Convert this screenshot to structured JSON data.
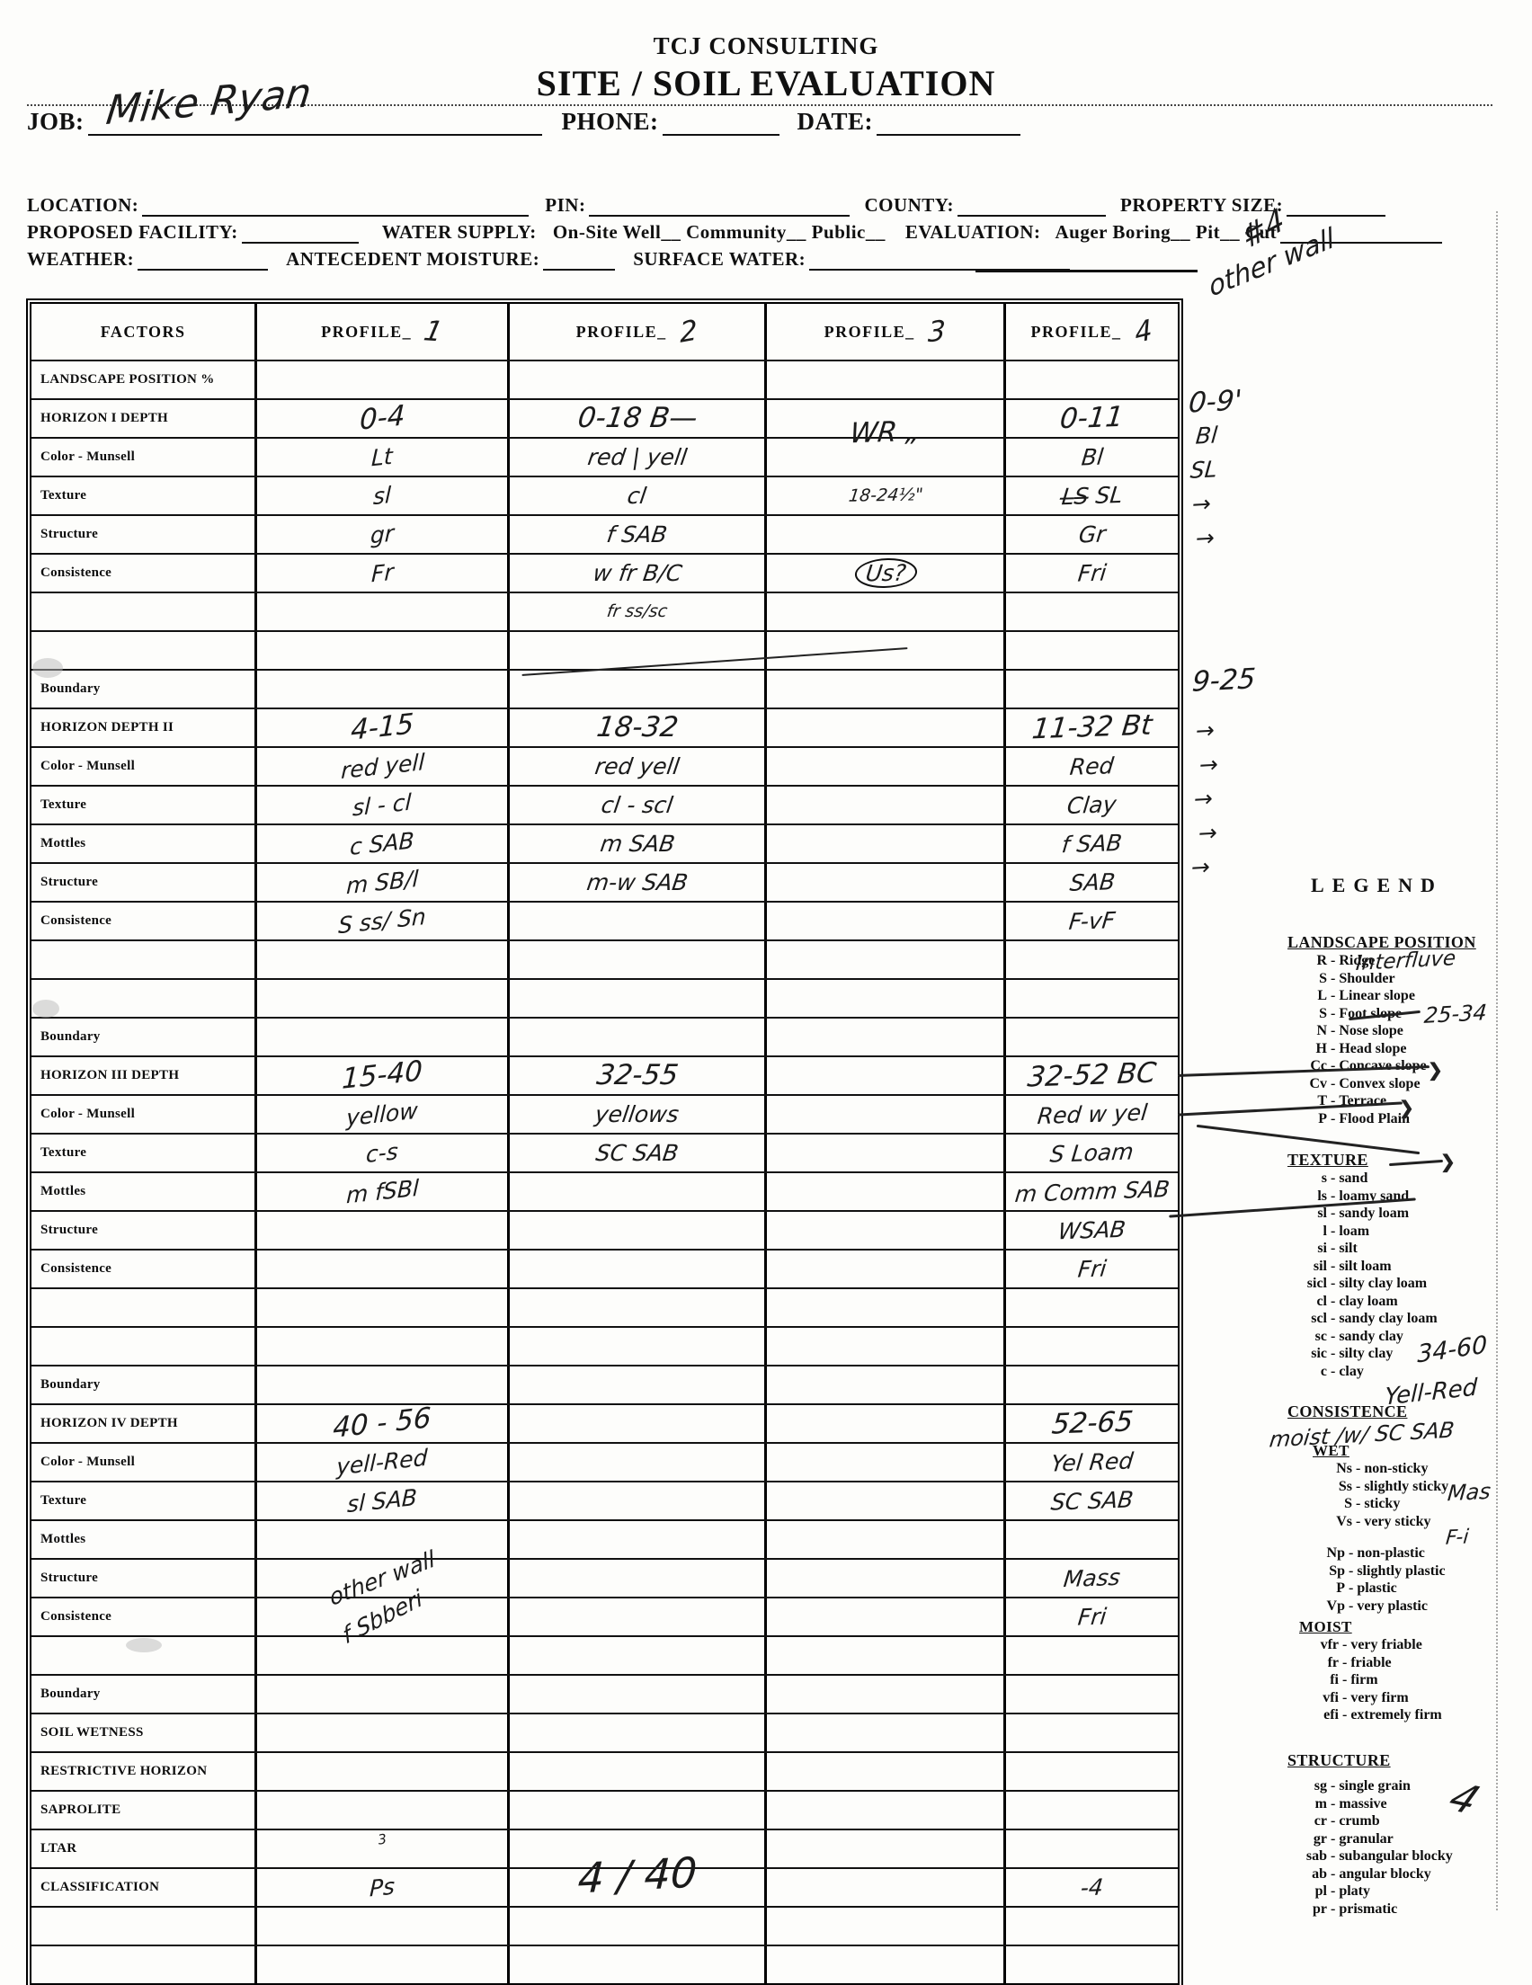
{
  "header": {
    "company": "TCJ CONSULTING",
    "title": "SITE / SOIL EVALUATION"
  },
  "fields": {
    "job_label": "JOB:",
    "job_value": "Mike Ryan",
    "phone_label": "PHONE:",
    "date_label": "DATE:",
    "location_label": "LOCATION:",
    "pin_label": "PIN:",
    "county_label": "COUNTY:",
    "property_size_label": "PROPERTY SIZE:",
    "proposed_facility_label": "PROPOSED FACILITY:",
    "water_supply_label": "WATER SUPPLY:",
    "water_supply_options": "On-Site Well__ Community__ Public__",
    "evaluation_label": "EVALUATION:",
    "evaluation_options": "Auger Boring__ Pit__ Cut",
    "weather_label": "WEATHER:",
    "antecedent_label": "ANTECEDENT MOISTURE:",
    "surface_water_label": "SURFACE WATER:"
  },
  "table": {
    "factors_heading": "FACTORS",
    "profile_heading": "PROFILE_",
    "profile_numbers": [
      "1",
      "2",
      "3",
      "4"
    ],
    "rows": [
      {
        "label": "LANDSCAPE POSITION %",
        "p1": "",
        "p2": "",
        "p3": "",
        "p4": ""
      },
      {
        "label": "HORIZON I DEPTH",
        "p1": "0-4",
        "p2": "0-18  B—",
        "p3": "WR „",
        "p4": "0-11"
      },
      {
        "label": "Color - Munsell",
        "p1": "Lt",
        "p2": "red | yell",
        "p3": "",
        "p4": "Bl"
      },
      {
        "label": "Texture",
        "p1": "sl",
        "p2": "cl",
        "p3": "18-24½\"",
        "p4": "L̶S̶ SL"
      },
      {
        "label": "Structure",
        "p1": "gr",
        "p2": "f SAB",
        "p3": "",
        "p4": "Gr"
      },
      {
        "label": "Consistence",
        "p1": "Fr",
        "p2": "w fr B/C",
        "p3": "Us?",
        "p4": "Fri"
      },
      {
        "label": "",
        "p1": "",
        "p2": "fr ss/sc",
        "p3": "",
        "p4": ""
      },
      {
        "label": "",
        "p1": "",
        "p2": "",
        "p3": "",
        "p4": ""
      },
      {
        "label": "Boundary",
        "p1": "",
        "p2": "",
        "p3": "",
        "p4": ""
      },
      {
        "label": "HORIZON DEPTH II",
        "p1": "4-15",
        "p2": "18-32",
        "p3": "",
        "p4": "11-32  Bt"
      },
      {
        "label": "Color - Munsell",
        "p1": "red yell",
        "p2": "red yell",
        "p3": "",
        "p4": "Red"
      },
      {
        "label": "Texture",
        "p1": "sl - cl",
        "p2": "cl - scl",
        "p3": "",
        "p4": "Clay"
      },
      {
        "label": "Mottles",
        "p1": "c SAB",
        "p2": "m SAB",
        "p3": "",
        "p4": "f SAB"
      },
      {
        "label": "Structure",
        "p1": "m SB/l",
        "p2": "m-w SAB",
        "p3": "",
        "p4": "SAB"
      },
      {
        "label": "Consistence",
        "p1": "S ss/ Sn",
        "p2": "",
        "p3": "",
        "p4": "F-vF"
      },
      {
        "label": "",
        "p1": "",
        "p2": "",
        "p3": "",
        "p4": ""
      },
      {
        "label": "",
        "p1": "",
        "p2": "",
        "p3": "",
        "p4": ""
      },
      {
        "label": "Boundary",
        "p1": "",
        "p2": "",
        "p3": "",
        "p4": ""
      },
      {
        "label": "HORIZON III DEPTH",
        "p1": "15-40",
        "p2": "32-55",
        "p3": "",
        "p4": "32-52  BC"
      },
      {
        "label": "Color - Munsell",
        "p1": "yellow",
        "p2": "yellows",
        "p3": "",
        "p4": "Red w yel"
      },
      {
        "label": "Texture",
        "p1": "c-s",
        "p2": "SC SAB",
        "p3": "",
        "p4": "S Loam"
      },
      {
        "label": "Mottles",
        "p1": "m fSBl",
        "p2": "",
        "p3": "",
        "p4": "m Comm SAB"
      },
      {
        "label": "Structure",
        "p1": "",
        "p2": "",
        "p3": "",
        "p4": "WSAB"
      },
      {
        "label": "Consistence",
        "p1": "",
        "p2": "",
        "p3": "",
        "p4": "Fri"
      },
      {
        "label": "",
        "p1": "",
        "p2": "",
        "p3": "",
        "p4": ""
      },
      {
        "label": "",
        "p1": "",
        "p2": "",
        "p3": "",
        "p4": ""
      },
      {
        "label": "Boundary",
        "p1": "",
        "p2": "",
        "p3": "",
        "p4": ""
      },
      {
        "label": "HORIZON IV DEPTH",
        "p1": "40 - 56",
        "p2": "",
        "p3": "",
        "p4": "52-65"
      },
      {
        "label": "Color - Munsell",
        "p1": "yell-Red",
        "p2": "",
        "p3": "",
        "p4": "Yel Red"
      },
      {
        "label": "Texture",
        "p1": "sl SAB",
        "p2": "",
        "p3": "",
        "p4": "SC SAB"
      },
      {
        "label": "Mottles",
        "p1": "",
        "p2": "",
        "p3": "",
        "p4": ""
      },
      {
        "label": "Structure",
        "p1": "other wall",
        "p2": "",
        "p3": "",
        "p4": "Mass"
      },
      {
        "label": "Consistence",
        "p1": "f Sbberi",
        "p2": "",
        "p3": "",
        "p4": "Fri"
      },
      {
        "label": "",
        "p1": "",
        "p2": "",
        "p3": "",
        "p4": ""
      },
      {
        "label": "Boundary",
        "p1": "",
        "p2": "",
        "p3": "",
        "p4": ""
      },
      {
        "label": "SOIL WETNESS",
        "p1": "",
        "p2": "",
        "p3": "",
        "p4": ""
      },
      {
        "label": "RESTRICTIVE HORIZON",
        "p1": "",
        "p2": "",
        "p3": "",
        "p4": ""
      },
      {
        "label": "SAPROLITE",
        "p1": "",
        "p2": "",
        "p3": "",
        "p4": ""
      },
      {
        "label": "LTAR",
        "p1": "3",
        "p2": "",
        "p3": "",
        "p4": ""
      },
      {
        "label": "CLASSIFICATION",
        "p1": "Ps",
        "p2": "4 / 40",
        "p3": "",
        "p4": "-4"
      },
      {
        "label": "",
        "p1": "",
        "p2": "",
        "p3": "",
        "p4": ""
      },
      {
        "label": "",
        "p1": "",
        "p2": "",
        "p3": "",
        "p4": ""
      }
    ]
  },
  "annotations": {
    "top_right_1": "#4",
    "top_right_2": "other wall",
    "h1_depth": "0-9'",
    "h1_color": "Bl",
    "h1_texture": "SL",
    "arrow": "→",
    "h2_depth": "9-25",
    "interfluve": "Interfluve",
    "foot_slope_range": "25-34",
    "texture_range": "34-60",
    "yell_red": "Yell-Red",
    "moist_note": "moist /w/ SC SAB",
    "mas_note": "Mas",
    "fi_note": "F-i",
    "four_note": "4"
  },
  "legend": {
    "title": "LEGEND",
    "landscape": {
      "heading": "LANDSCAPE POSITION",
      "items": [
        "R - Ridge",
        "S - Shoulder",
        "L - Linear slope",
        "S - Foot slope",
        "N - Nose slope",
        "H - Head slope",
        "Cc - Concave slope",
        "Cv - Convex slope",
        "T - Terrace",
        "P - Flood Plain"
      ]
    },
    "texture": {
      "heading": "TEXTURE",
      "items": [
        "s - sand",
        "ls - loamy sand",
        "sl - sandy loam",
        "l - loam",
        "si - silt",
        "sil - silt loam",
        "sicl - silty clay loam",
        "cl - clay loam",
        "scl - sandy clay loam",
        "sc - sandy clay",
        "sic - silty clay",
        "c - clay"
      ]
    },
    "consistence": {
      "heading": "CONSISTENCE",
      "wet_heading": "WET",
      "wet_items": [
        "Ns - non-sticky",
        "Ss - slightly sticky",
        "S - sticky",
        "Vs - very sticky"
      ],
      "plastic_items": [
        "Np - non-plastic",
        "Sp - slightly plastic",
        "P - plastic",
        "Vp - very plastic"
      ],
      "moist_heading": "MOIST",
      "moist_items": [
        "vfr - very friable",
        "fr - friable",
        "fi - firm",
        "vfi - very firm",
        "efi - extremely firm"
      ]
    },
    "structure": {
      "heading": "STRUCTURE",
      "items": [
        "sg - single grain",
        "m - massive",
        "cr - crumb",
        "gr - granular",
        "sab - subangular blocky",
        "ab - angular blocky",
        "pl - platy",
        "pr - prismatic"
      ]
    }
  }
}
